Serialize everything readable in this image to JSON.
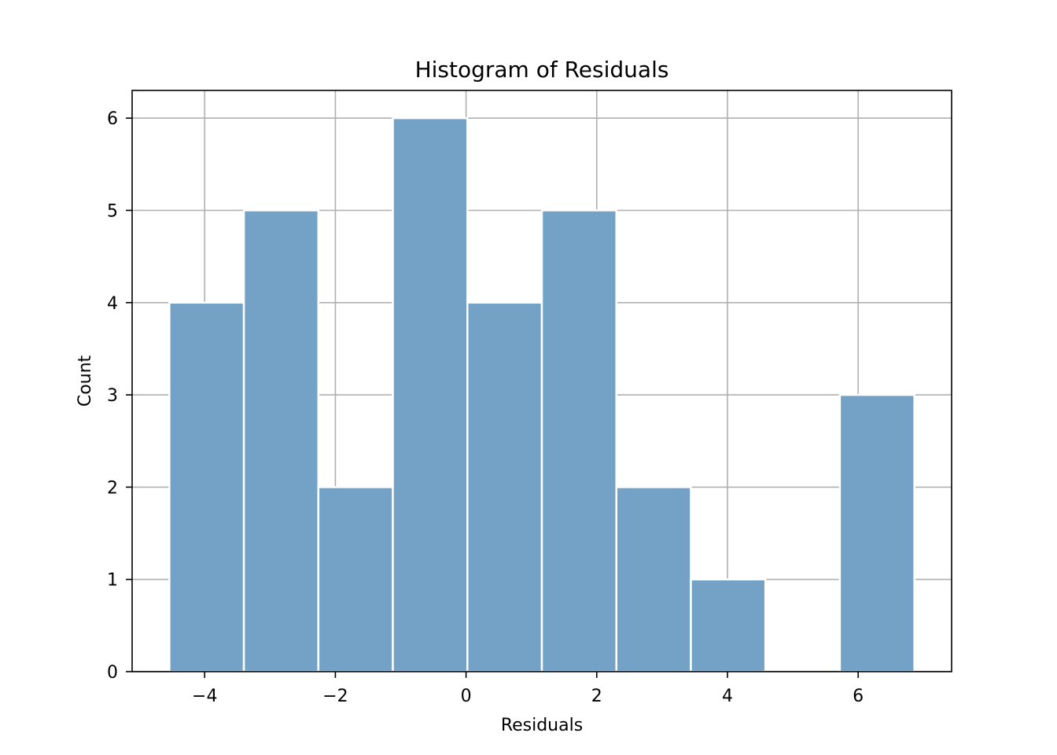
{
  "chart_data": {
    "type": "bar",
    "title": "Histogram of Residuals",
    "xlabel": "Residuals",
    "ylabel": "Count",
    "bins": [
      {
        "x0": -4.54,
        "x1": -3.4,
        "count": 4
      },
      {
        "x0": -3.4,
        "x1": -2.26,
        "count": 5
      },
      {
        "x0": -2.26,
        "x1": -1.12,
        "count": 2
      },
      {
        "x0": -1.12,
        "x1": 0.02,
        "count": 6
      },
      {
        "x0": 0.02,
        "x1": 1.16,
        "count": 4
      },
      {
        "x0": 1.16,
        "x1": 2.3,
        "count": 5
      },
      {
        "x0": 2.3,
        "x1": 3.44,
        "count": 2
      },
      {
        "x0": 3.44,
        "x1": 4.58,
        "count": 1
      },
      {
        "x0": 4.58,
        "x1": 5.72,
        "count": 0
      },
      {
        "x0": 5.72,
        "x1": 6.86,
        "count": 3
      }
    ],
    "xlim": [
      -5.11,
      7.43
    ],
    "ylim": [
      0,
      6.3
    ],
    "xticks": [
      -4,
      -2,
      0,
      2,
      4,
      6
    ],
    "xtick_labels": [
      "−4",
      "−2",
      "0",
      "2",
      "4",
      "6"
    ],
    "yticks": [
      0,
      1,
      2,
      3,
      4,
      5,
      6
    ],
    "ytick_labels": [
      "0",
      "1",
      "2",
      "3",
      "4",
      "5",
      "6"
    ],
    "grid": true,
    "colors": {
      "bar": "#74a2c7",
      "bar_edge": "#ffffff",
      "grid": "#b0b0b0",
      "axes": "#000000"
    }
  }
}
